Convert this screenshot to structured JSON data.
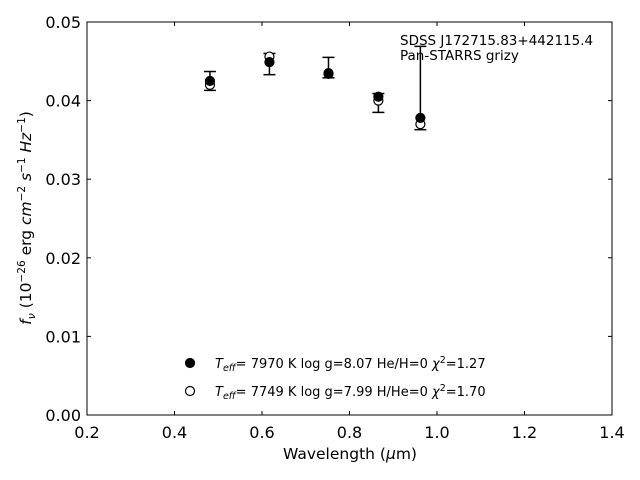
{
  "chart_data": {
    "type": "scatter",
    "title": "",
    "annotation": [
      "SDSS J172715.83+442115.4",
      "Pan-STARRS grizy"
    ],
    "xlabel": "Wavelength (μm)",
    "ylabel": "f_ν (10^-26 erg cm^-2 s^-1 Hz^-1)",
    "xlim": [
      0.2,
      1.4
    ],
    "ylim": [
      0.0,
      0.05
    ],
    "xticks": [
      0.2,
      0.4,
      0.6,
      0.8,
      1.0,
      1.2,
      1.4
    ],
    "xtick_labels": [
      "0.2",
      "0.4",
      "0.6",
      "0.8",
      "1.0",
      "1.2",
      "1.4"
    ],
    "yticks": [
      0.0,
      0.01,
      0.02,
      0.03,
      0.04,
      0.05
    ],
    "ytick_labels": [
      "0.00",
      "0.01",
      "0.02",
      "0.03",
      "0.04",
      "0.05"
    ],
    "grid": false,
    "legend_position": "bottom-center",
    "observed": {
      "x": [
        0.481,
        0.617,
        0.752,
        0.866,
        0.962
      ],
      "y": [
        0.0425,
        0.0448,
        0.0433,
        0.0398,
        0.0469
      ],
      "yerr_low": [
        0.0012,
        0.0015,
        0.0004,
        0.0013,
        0.0106
      ],
      "yerr_high": [
        0.0012,
        0.0012,
        0.0022,
        0.0011,
        0.0
      ]
    },
    "series": [
      {
        "marker": "filled-circle",
        "color": "#000000",
        "legend_teff_value": "7970 K",
        "legend_logg": "log g=8.07",
        "legend_comp": "He/H=0",
        "legend_chi2_value": "=1.27",
        "x": [
          0.481,
          0.617,
          0.752,
          0.866,
          0.962
        ],
        "y": [
          0.0425,
          0.0449,
          0.0435,
          0.0405,
          0.0378
        ]
      },
      {
        "marker": "open-circle",
        "color": "#000000",
        "legend_teff_value": "7749 K",
        "legend_logg": "log g=7.99",
        "legend_comp": "H/He=0",
        "legend_chi2_value": "=1.70",
        "x": [
          0.481,
          0.617,
          0.752,
          0.866,
          0.962
        ],
        "y": [
          0.042,
          0.0456,
          0.0434,
          0.04,
          0.037
        ]
      }
    ]
  }
}
